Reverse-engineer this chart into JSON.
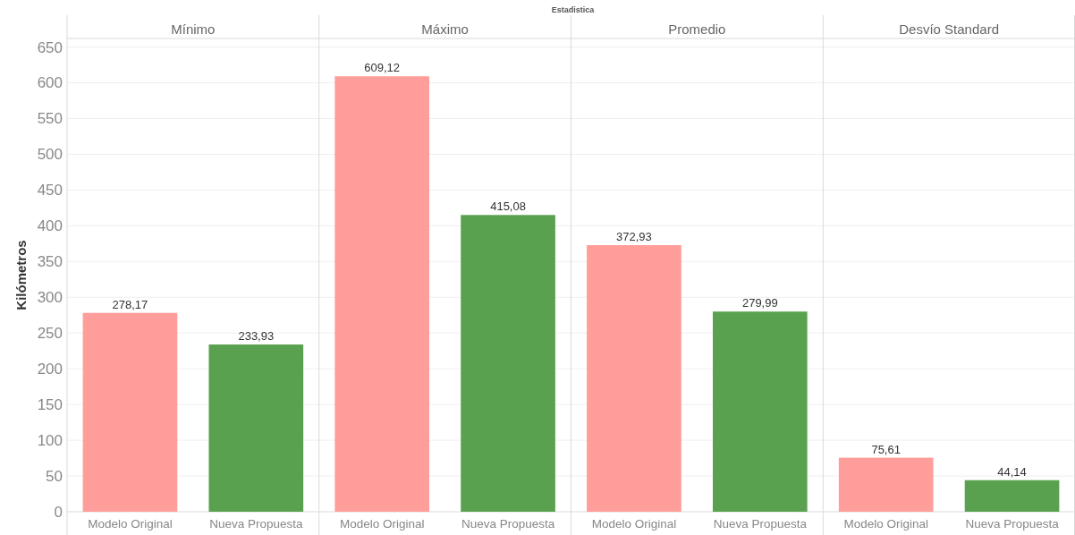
{
  "chart_data": [
    {
      "type": "bar",
      "title": "Mínimo",
      "annotations": [
        "Estadistica"
      ],
      "ylabel": "Kilómetros",
      "categories": [
        "Modelo Original",
        "Nueva Propuesta"
      ],
      "values": [
        278.17,
        233.93
      ],
      "colors": [
        "#ff9d9a",
        "#59a14f"
      ],
      "value_labels": [
        "278,17",
        "233,93"
      ],
      "ylim": [
        0,
        662
      ],
      "yticks": [
        0,
        50,
        100,
        150,
        200,
        250,
        300,
        350,
        400,
        450,
        500,
        550,
        600,
        650
      ],
      "grid": "y"
    },
    {
      "type": "bar",
      "title": "Máximo",
      "categories": [
        "Modelo Original",
        "Nueva Propuesta"
      ],
      "values": [
        609.12,
        415.08
      ],
      "colors": [
        "#ff9d9a",
        "#59a14f"
      ],
      "value_labels": [
        "609,12",
        "415,08"
      ],
      "ylim": [
        0,
        662
      ],
      "yticks": [
        0,
        50,
        100,
        150,
        200,
        250,
        300,
        350,
        400,
        450,
        500,
        550,
        600,
        650
      ],
      "grid": "y",
      "tick_labels": "x"
    },
    {
      "type": "bar",
      "title": "Promedio",
      "categories": [
        "Modelo Original",
        "Nueva Propuesta"
      ],
      "values": [
        372.93,
        279.99
      ],
      "colors": [
        "#ff9d9a",
        "#59a14f"
      ],
      "value_labels": [
        "372,93",
        "279,99"
      ],
      "ylim": [
        0,
        662
      ],
      "yticks": [
        0,
        50,
        100,
        150,
        200,
        250,
        300,
        350,
        400,
        450,
        500,
        550,
        600,
        650
      ],
      "grid": "y",
      "tick_labels": "x"
    },
    {
      "type": "bar",
      "title": "Desvío Standard",
      "categories": [
        "Modelo Original",
        "Nueva Propuesta"
      ],
      "values": [
        75.61,
        44.14
      ],
      "colors": [
        "#ff9d9a",
        "#59a14f"
      ],
      "value_labels": [
        "75,61",
        "44,14"
      ],
      "ylim": [
        0,
        662
      ],
      "yticks": [
        0,
        50,
        100,
        150,
        200,
        250,
        300,
        350,
        400,
        450,
        500,
        550,
        600,
        650
      ],
      "grid": "y",
      "tick_labels": "x"
    }
  ]
}
